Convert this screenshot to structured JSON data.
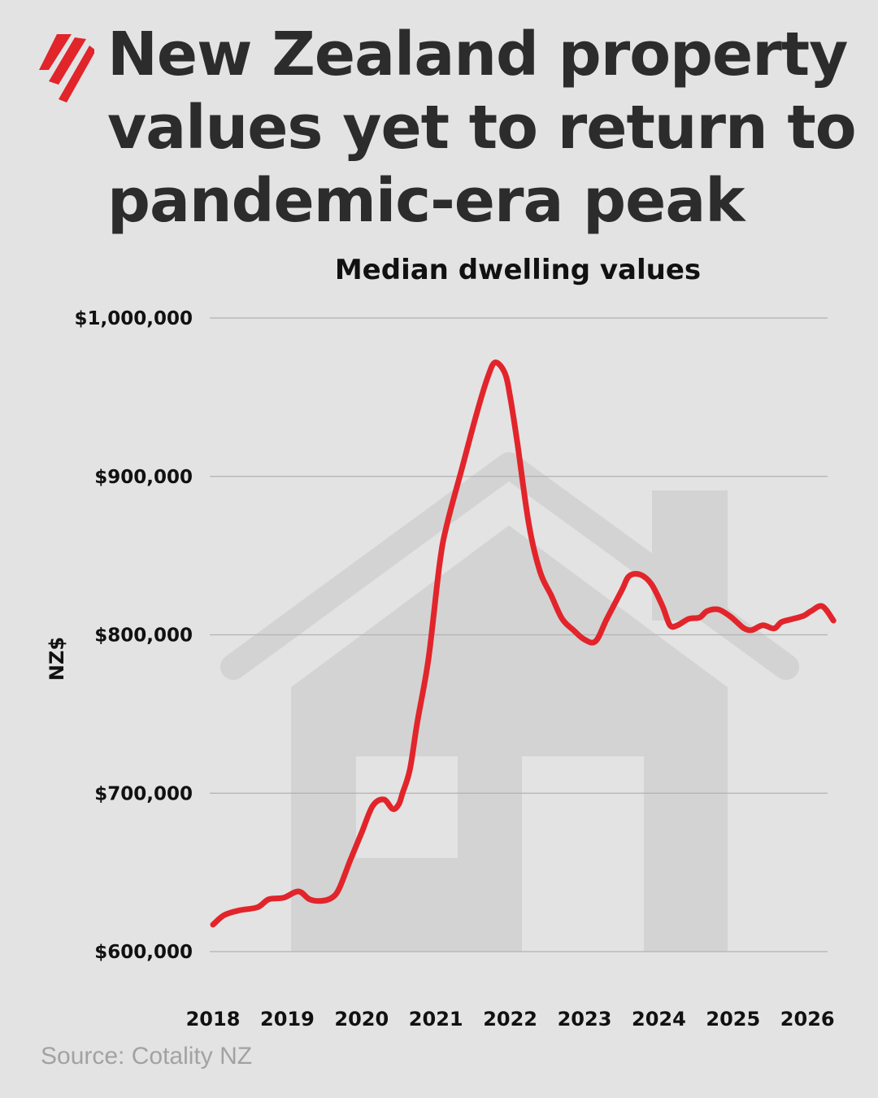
{
  "title": "New Zealand property values yet to return to pandemic-era peak",
  "source": "Source: Cotality NZ",
  "colors": {
    "background": "#e3e3e3",
    "line": "#e1252b",
    "house": "#d3d3d3",
    "text": "#2c2c2c",
    "source": "#a2a2a2"
  },
  "icons": {
    "logo": "sbs-logo-icon",
    "illustration": "house-icon"
  },
  "chart_data": {
    "type": "line",
    "title": "Median dwelling values",
    "ylabel": "NZ$",
    "xlabel": "",
    "ylim": [
      600000,
      1000000
    ],
    "yticks": [
      {
        "value": 1000000,
        "label": "$1,000,000"
      },
      {
        "value": 900000,
        "label": "$900,000"
      },
      {
        "value": 800000,
        "label": "$800,000"
      },
      {
        "value": 700000,
        "label": "$700,000"
      },
      {
        "value": 600000,
        "label": "$600,000"
      }
    ],
    "xlim": [
      2018,
      2026.4
    ],
    "xticks": [
      "2018",
      "2019",
      "2020",
      "2021",
      "2022",
      "2023",
      "2024",
      "2025",
      "2026"
    ],
    "grid": true,
    "series": [
      {
        "x": [
          2018.0,
          2018.15,
          2018.35,
          2018.6,
          2018.75,
          2018.95,
          2019.15,
          2019.3,
          2019.45,
          2019.6,
          2019.7,
          2019.85,
          2020.0,
          2020.15,
          2020.3,
          2020.42,
          2020.5,
          2020.55,
          2020.65,
          2020.75,
          2020.9,
          2021.05,
          2021.15,
          2021.35,
          2021.55,
          2021.7,
          2021.8,
          2021.93,
          2022.0,
          2022.1,
          2022.25,
          2022.4,
          2022.55,
          2022.7,
          2022.85,
          2023.0,
          2023.15,
          2023.3,
          2023.5,
          2023.6,
          2023.75,
          2023.9,
          2024.05,
          2024.15,
          2024.25,
          2024.4,
          2024.55,
          2024.65,
          2024.8,
          2024.95,
          2025.05,
          2025.15,
          2025.25,
          2025.4,
          2025.55,
          2025.65,
          2025.8,
          2025.95,
          2026.05,
          2026.2,
          2026.35
        ],
        "y": [
          617000,
          623000,
          626000,
          628000,
          633000,
          634000,
          638000,
          633000,
          632000,
          634000,
          640000,
          658000,
          675000,
          692000,
          696000,
          690000,
          693000,
          700000,
          715000,
          745000,
          785000,
          845000,
          870000,
          905000,
          940000,
          963000,
          972000,
          965000,
          950000,
          920000,
          870000,
          840000,
          825000,
          810000,
          803000,
          797000,
          796000,
          810000,
          828000,
          837000,
          838000,
          832000,
          818000,
          806000,
          806000,
          810000,
          811000,
          815000,
          816000,
          812000,
          808000,
          804000,
          803000,
          806000,
          804000,
          808000,
          810000,
          812000,
          815000,
          818000,
          809000
        ]
      }
    ]
  }
}
